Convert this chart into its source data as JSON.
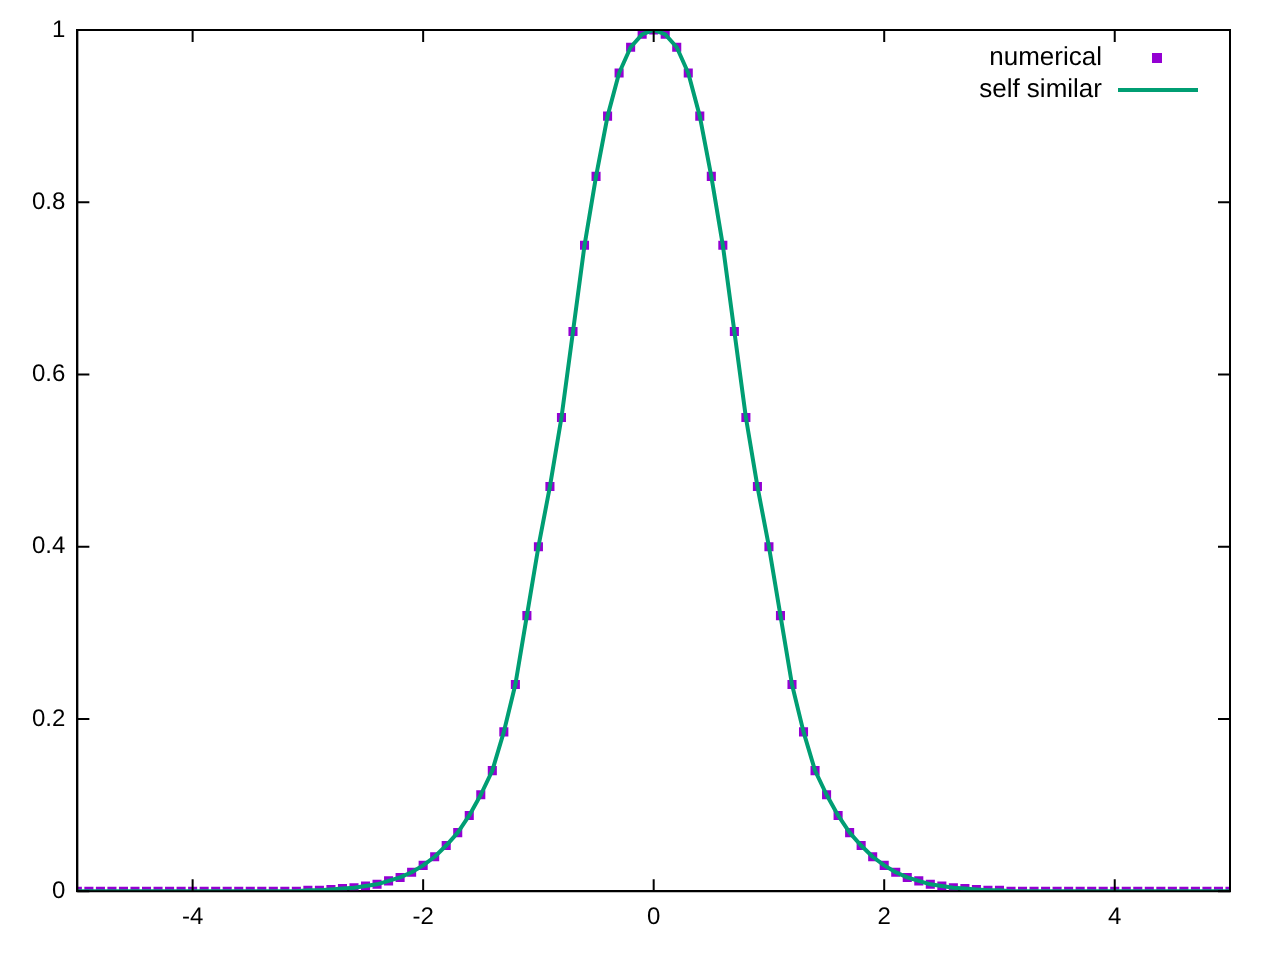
{
  "chart_data": {
    "type": "scatter",
    "xlim": [
      -5,
      5
    ],
    "ylim": [
      0,
      1
    ],
    "xticks": [
      -4,
      -2,
      0,
      2,
      4
    ],
    "yticks": [
      0,
      0.2,
      0.4,
      0.6,
      0.8,
      1
    ],
    "grid": false,
    "legend": "top right",
    "x": [
      -5,
      -4.9,
      -4.8,
      -4.7,
      -4.6,
      -4.5,
      -4.4,
      -4.3,
      -4.2,
      -4.1,
      -4,
      -3.9,
      -3.8,
      -3.7,
      -3.6,
      -3.5,
      -3.4,
      -3.3,
      -3.2,
      -3.1,
      -3,
      -2.9,
      -2.8,
      -2.7,
      -2.6,
      -2.5,
      -2.4,
      -2.3,
      -2.2,
      -2.1,
      -2,
      -1.9,
      -1.8,
      -1.7,
      -1.6,
      -1.5,
      -1.4,
      -1.3,
      -1.2,
      -1.1,
      -1,
      -0.9,
      -0.8,
      -0.7,
      -0.6,
      -0.5,
      -0.4,
      -0.3,
      -0.2,
      -0.1,
      0,
      0.1,
      0.2,
      0.3,
      0.4,
      0.5,
      0.6,
      0.7,
      0.8,
      0.9,
      1,
      1.1,
      1.2,
      1.3,
      1.4,
      1.5,
      1.6,
      1.7,
      1.8,
      1.9,
      2,
      2.1,
      2.2,
      2.3,
      2.4,
      2.5,
      2.6,
      2.7,
      2.8,
      2.9,
      3,
      3.1,
      3.2,
      3.3,
      3.4,
      3.5,
      3.6,
      3.7,
      3.8,
      3.9,
      4,
      4.1,
      4.2,
      4.3,
      4.4,
      4.5,
      4.6,
      4.7,
      4.8,
      4.9,
      5
    ],
    "series": [
      {
        "name": "numerical",
        "type": "scatter",
        "marker": "square",
        "color": "#9400d3",
        "values": [
          0,
          0,
          0,
          0,
          0,
          0,
          0,
          0,
          0,
          0,
          0,
          0,
          0,
          0,
          0,
          0,
          0,
          0,
          0,
          0,
          0.001,
          0.001,
          0.002,
          0.003,
          0.004,
          0.006,
          0.008,
          0.012,
          0.016,
          0.022,
          0.03,
          0.04,
          0.053,
          0.068,
          0.088,
          0.112,
          0.14,
          0.185,
          0.24,
          0.32,
          0.4,
          0.47,
          0.55,
          0.65,
          0.75,
          0.83,
          0.9,
          0.95,
          0.98,
          0.995,
          1,
          0.995,
          0.98,
          0.95,
          0.9,
          0.83,
          0.75,
          0.65,
          0.55,
          0.47,
          0.4,
          0.32,
          0.24,
          0.185,
          0.14,
          0.112,
          0.088,
          0.068,
          0.053,
          0.04,
          0.03,
          0.022,
          0.016,
          0.012,
          0.008,
          0.006,
          0.004,
          0.003,
          0.002,
          0.001,
          0.001,
          0,
          0,
          0,
          0,
          0,
          0,
          0,
          0,
          0,
          0,
          0,
          0,
          0,
          0,
          0,
          0,
          0,
          0,
          0,
          0
        ]
      },
      {
        "name": "self similar",
        "type": "line",
        "line_style": "solid",
        "color": "#009e73",
        "values": [
          0,
          0,
          0,
          0,
          0,
          0,
          0,
          0,
          0,
          0,
          0,
          0,
          0,
          0,
          0,
          0,
          0,
          0,
          0,
          0,
          0.001,
          0.001,
          0.002,
          0.003,
          0.004,
          0.006,
          0.008,
          0.012,
          0.016,
          0.022,
          0.03,
          0.04,
          0.053,
          0.068,
          0.088,
          0.112,
          0.14,
          0.185,
          0.24,
          0.32,
          0.4,
          0.47,
          0.55,
          0.65,
          0.75,
          0.83,
          0.9,
          0.95,
          0.98,
          0.995,
          1,
          0.995,
          0.98,
          0.95,
          0.9,
          0.83,
          0.75,
          0.65,
          0.55,
          0.47,
          0.4,
          0.32,
          0.24,
          0.185,
          0.14,
          0.112,
          0.088,
          0.068,
          0.053,
          0.04,
          0.03,
          0.022,
          0.016,
          0.012,
          0.008,
          0.006,
          0.004,
          0.003,
          0.002,
          0.001,
          0.001,
          0,
          0,
          0,
          0,
          0,
          0,
          0,
          0,
          0,
          0,
          0,
          0,
          0,
          0,
          0,
          0,
          0,
          0,
          0,
          0
        ]
      }
    ]
  }
}
